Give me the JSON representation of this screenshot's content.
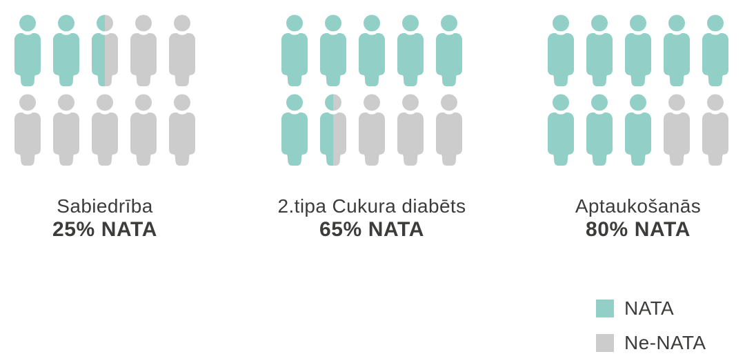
{
  "colors": {
    "nata": "#91CFC7",
    "ne_nata": "#CCCCCC",
    "text": "#3C3C3B",
    "background": "#FFFFFF"
  },
  "groups": [
    {
      "title": "Sabiedrība",
      "percent_label": "25% NATA",
      "percent": 25,
      "icon_fills": [
        "full",
        "full",
        "half",
        "empty",
        "empty",
        "empty",
        "empty",
        "empty",
        "empty",
        "empty"
      ]
    },
    {
      "title": "2.tipa Cukura diabēts",
      "percent_label": "65% NATA",
      "percent": 65,
      "icon_fills": [
        "full",
        "full",
        "full",
        "full",
        "full",
        "full",
        "half",
        "empty",
        "empty",
        "empty"
      ]
    },
    {
      "title": "Aptaukošanās",
      "percent_label": "80% NATA",
      "percent": 80,
      "icon_fills": [
        "full",
        "full",
        "full",
        "full",
        "full",
        "full",
        "full",
        "full",
        "empty",
        "empty"
      ]
    }
  ],
  "legend": {
    "items": [
      {
        "label": "NATA",
        "color": "#91CFC7"
      },
      {
        "label": "Ne-NATA",
        "color": "#CCCCCC"
      }
    ]
  },
  "chart_data": {
    "type": "bar",
    "variant": "pictogram-people",
    "categories": [
      "Sabiedrība",
      "2.tipa Cukura diabēts",
      "Aptaukošanās"
    ],
    "values": [
      25,
      65,
      80
    ],
    "unit": "% NATA",
    "icons_per_group": 10,
    "icon_value_percent": 10,
    "filled_icons_per_group": [
      2.5,
      6.5,
      8
    ],
    "series_names": [
      "NATA",
      "Ne-NATA"
    ],
    "legend_position": "bottom-right",
    "grid": false,
    "title": "",
    "xlabel": "",
    "ylabel": ""
  }
}
